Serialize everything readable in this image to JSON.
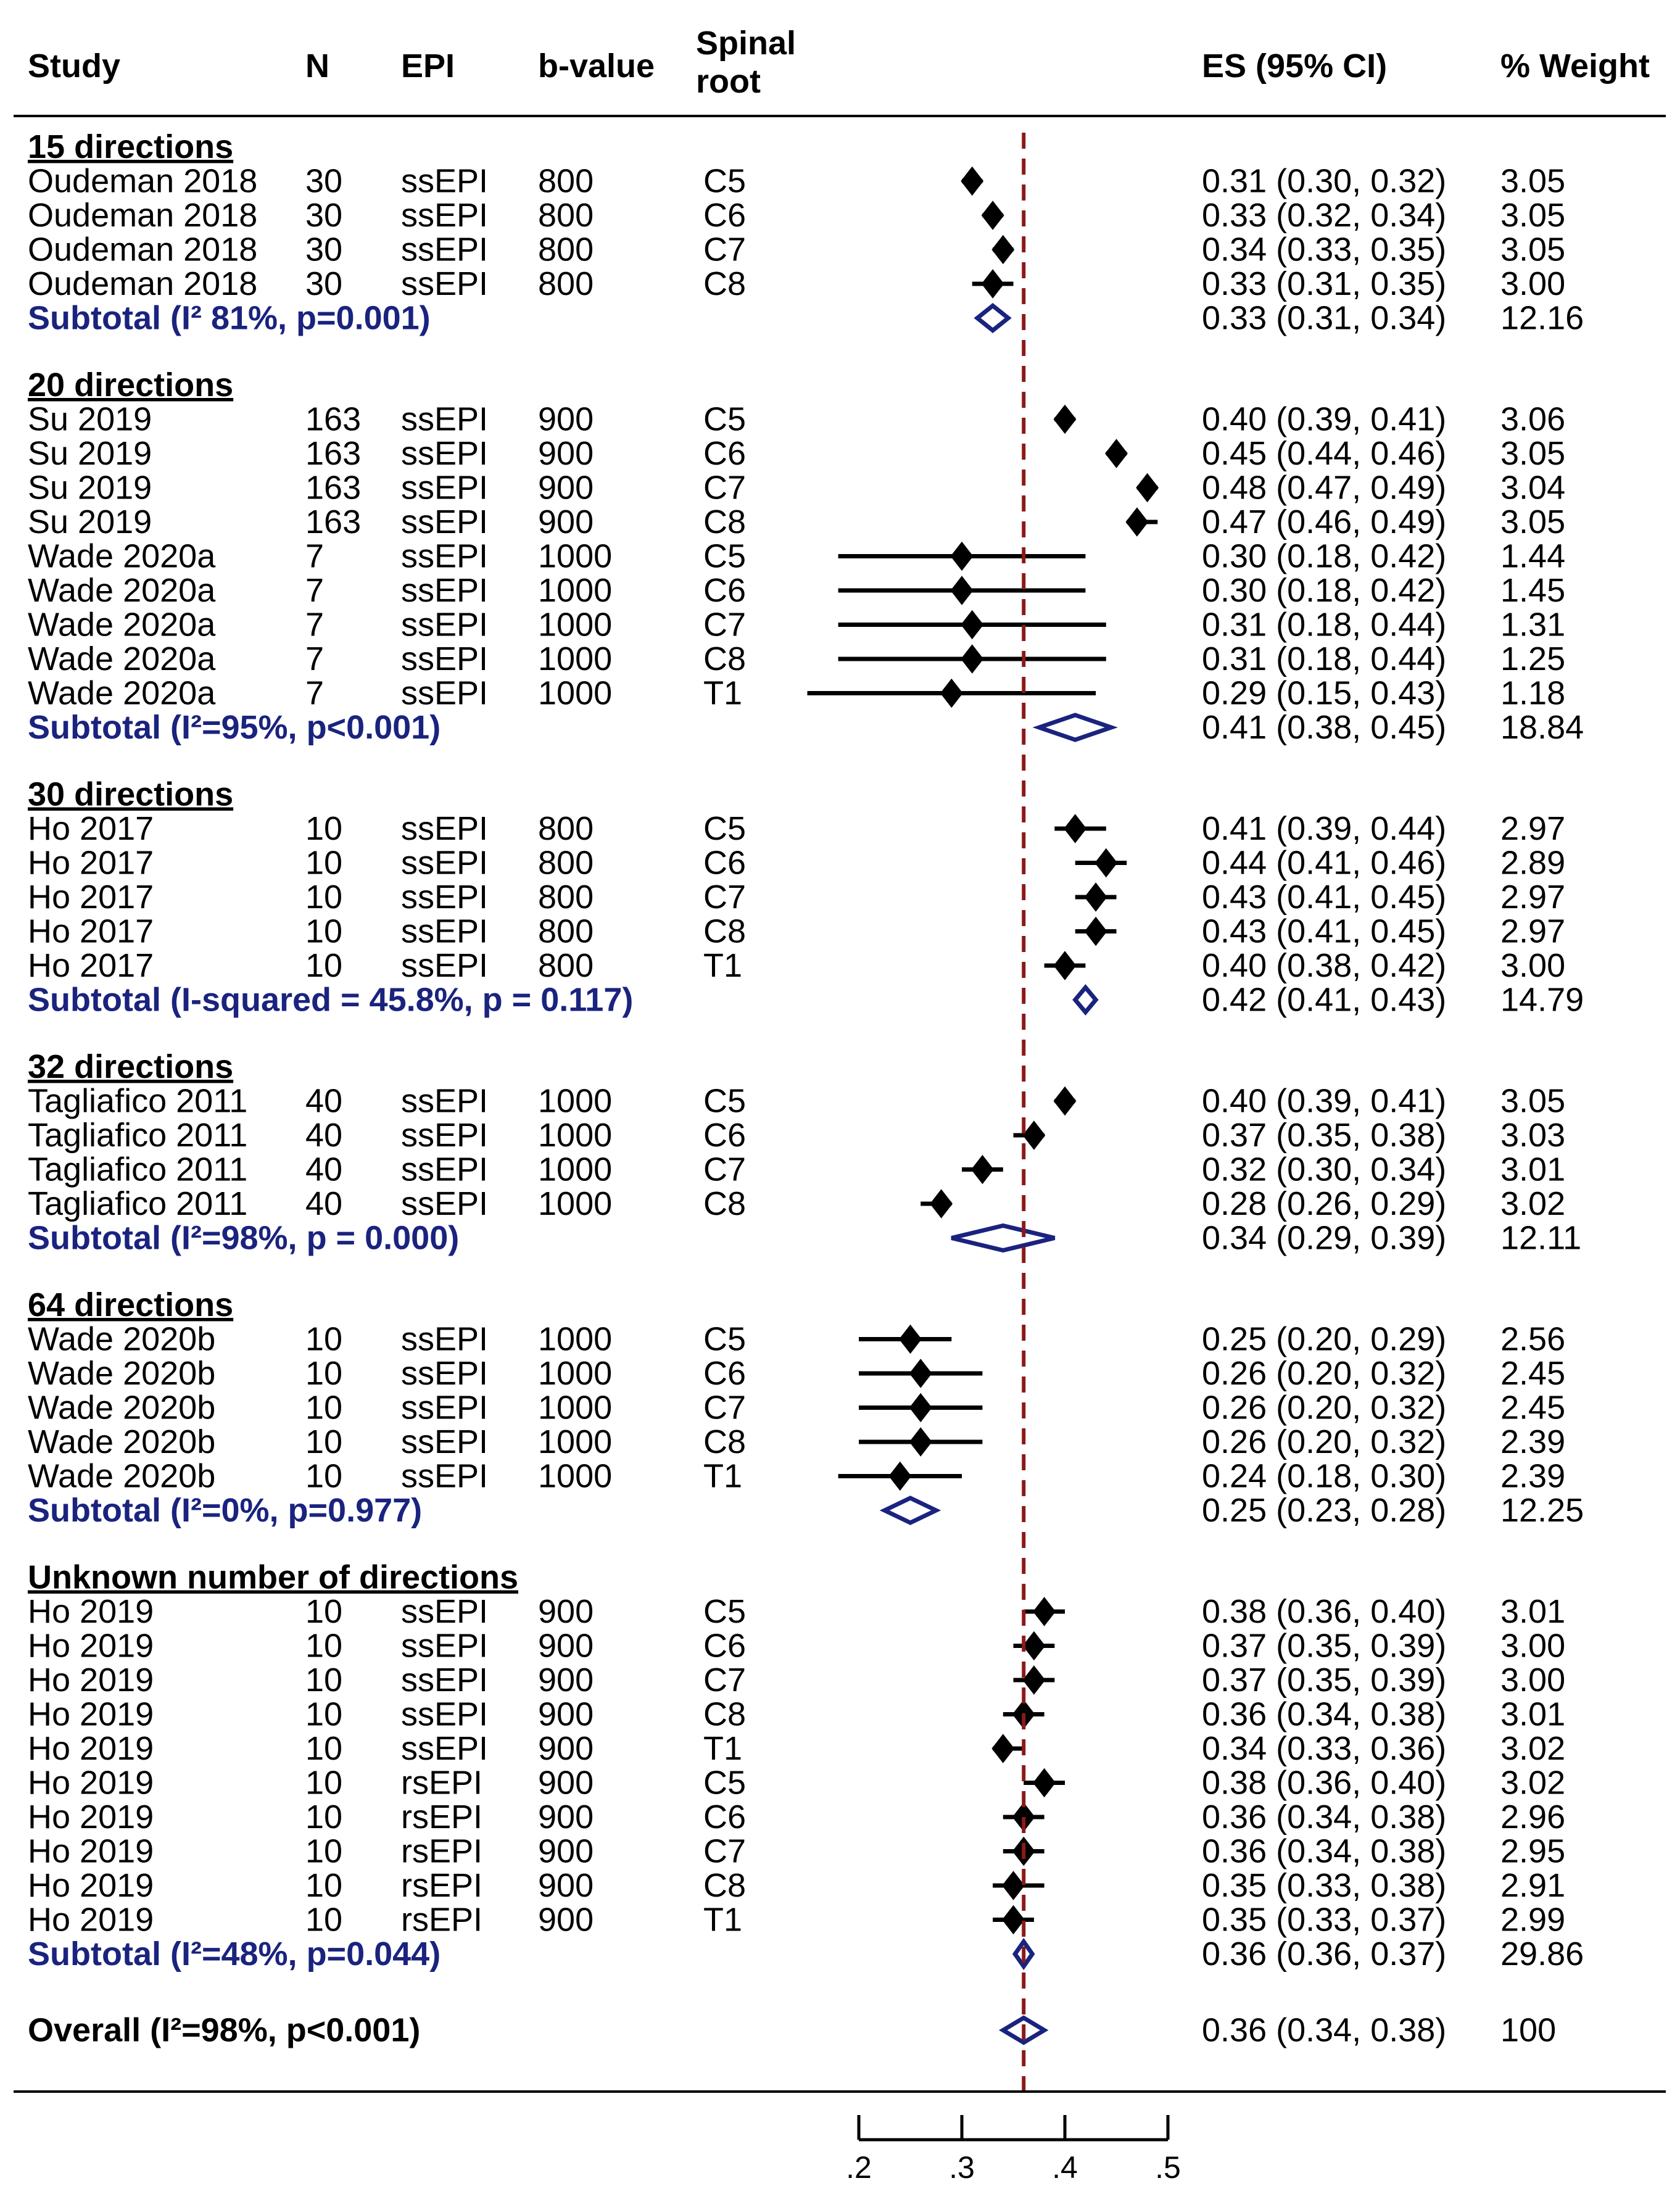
{
  "chart_data": {
    "type": "forest",
    "title": "",
    "headers": {
      "study": "Study",
      "n": "N",
      "epi": "EPI",
      "bvalue": "b-value",
      "root_line1": "Spinal",
      "root_line2": "root",
      "es": "ES (95% CI)",
      "weight": "% Weight"
    },
    "reference_line": 0.36,
    "xaxis": {
      "ticks": [
        0.2,
        0.3,
        0.4,
        0.5
      ],
      "tick_labels": [
        ".2",
        ".3",
        ".4",
        ".5"
      ],
      "range": [
        0.2,
        0.5
      ]
    },
    "colors": {
      "study_marker": "#000000",
      "pooled": "#1a237e",
      "reference_line": "#8b1a1a"
    },
    "groups": [
      {
        "label": "15 directions",
        "rows": [
          {
            "study": "Oudeman 2018",
            "n": "30",
            "epi": "ssEPI",
            "b": "800",
            "root": "C5",
            "es": 0.31,
            "lo": 0.3,
            "hi": 0.32,
            "ci": "0.31 (0.30, 0.32)",
            "w": "3.05"
          },
          {
            "study": "Oudeman 2018",
            "n": "30",
            "epi": "ssEPI",
            "b": "800",
            "root": "C6",
            "es": 0.33,
            "lo": 0.32,
            "hi": 0.34,
            "ci": "0.33 (0.32, 0.34)",
            "w": "3.05"
          },
          {
            "study": "Oudeman 2018",
            "n": "30",
            "epi": "ssEPI",
            "b": "800",
            "root": "C7",
            "es": 0.34,
            "lo": 0.33,
            "hi": 0.35,
            "ci": "0.34 (0.33, 0.35)",
            "w": "3.05"
          },
          {
            "study": "Oudeman 2018",
            "n": "30",
            "epi": "ssEPI",
            "b": "800",
            "root": "C8",
            "es": 0.33,
            "lo": 0.31,
            "hi": 0.35,
            "ci": "0.33 (0.31, 0.35)",
            "w": "3.00"
          }
        ],
        "subtotal": {
          "label": "Subtotal  (I² 81%, p=0.001)",
          "es": 0.33,
          "lo": 0.31,
          "hi": 0.34,
          "ci": "0.33 (0.31, 0.34)",
          "w": "12.16"
        }
      },
      {
        "label": "20 directions",
        "rows": [
          {
            "study": "Su 2019",
            "n": "163",
            "epi": "ssEPI",
            "b": "900",
            "root": "C5",
            "es": 0.4,
            "lo": 0.39,
            "hi": 0.41,
            "ci": "0.40 (0.39, 0.41)",
            "w": "3.06"
          },
          {
            "study": "Su 2019",
            "n": "163",
            "epi": "ssEPI",
            "b": "900",
            "root": "C6",
            "es": 0.45,
            "lo": 0.44,
            "hi": 0.46,
            "ci": "0.45 (0.44, 0.46)",
            "w": "3.05"
          },
          {
            "study": "Su 2019",
            "n": "163",
            "epi": "ssEPI",
            "b": "900",
            "root": "C7",
            "es": 0.48,
            "lo": 0.47,
            "hi": 0.49,
            "ci": "0.48 (0.47, 0.49)",
            "w": "3.04"
          },
          {
            "study": "Su 2019",
            "n": "163",
            "epi": "ssEPI",
            "b": "900",
            "root": "C8",
            "es": 0.47,
            "lo": 0.46,
            "hi": 0.49,
            "ci": "0.47 (0.46, 0.49)",
            "w": "3.05"
          },
          {
            "study": "Wade 2020a",
            "n": "7",
            "epi": "ssEPI",
            "b": "1000",
            "root": "C5",
            "es": 0.3,
            "lo": 0.18,
            "hi": 0.42,
            "ci": "0.30 (0.18, 0.42)",
            "w": "1.44"
          },
          {
            "study": "Wade 2020a",
            "n": "7",
            "epi": "ssEPI",
            "b": "1000",
            "root": "C6",
            "es": 0.3,
            "lo": 0.18,
            "hi": 0.42,
            "ci": "0.30 (0.18, 0.42)",
            "w": "1.45"
          },
          {
            "study": "Wade 2020a",
            "n": "7",
            "epi": "ssEPI",
            "b": "1000",
            "root": "C7",
            "es": 0.31,
            "lo": 0.18,
            "hi": 0.44,
            "ci": "0.31 (0.18, 0.44)",
            "w": "1.31"
          },
          {
            "study": "Wade 2020a",
            "n": "7",
            "epi": "ssEPI",
            "b": "1000",
            "root": "C8",
            "es": 0.31,
            "lo": 0.18,
            "hi": 0.44,
            "ci": "0.31 (0.18, 0.44)",
            "w": "1.25"
          },
          {
            "study": "Wade 2020a",
            "n": "7",
            "epi": "ssEPI",
            "b": "1000",
            "root": "T1",
            "es": 0.29,
            "lo": 0.15,
            "hi": 0.43,
            "ci": "0.29 (0.15, 0.43)",
            "w": "1.18"
          }
        ],
        "subtotal": {
          "label": "Subtotal  (I²=95%, p<0.001)",
          "es": 0.41,
          "lo": 0.38,
          "hi": 0.45,
          "ci": "0.41 (0.38, 0.45)",
          "w": "18.84"
        }
      },
      {
        "label": "30 directions",
        "rows": [
          {
            "study": "Ho 2017",
            "n": "10",
            "epi": "ssEPI",
            "b": "800",
            "root": "C5",
            "es": 0.41,
            "lo": 0.39,
            "hi": 0.44,
            "ci": "0.41 (0.39, 0.44)",
            "w": "2.97"
          },
          {
            "study": "Ho 2017",
            "n": "10",
            "epi": "ssEPI",
            "b": "800",
            "root": "C6",
            "es": 0.44,
            "lo": 0.41,
            "hi": 0.46,
            "ci": "0.44 (0.41, 0.46)",
            "w": "2.89"
          },
          {
            "study": "Ho 2017",
            "n": "10",
            "epi": "ssEPI",
            "b": "800",
            "root": "C7",
            "es": 0.43,
            "lo": 0.41,
            "hi": 0.45,
            "ci": "0.43 (0.41, 0.45)",
            "w": "2.97"
          },
          {
            "study": "Ho 2017",
            "n": "10",
            "epi": "ssEPI",
            "b": "800",
            "root": "C8",
            "es": 0.43,
            "lo": 0.41,
            "hi": 0.45,
            "ci": "0.43 (0.41, 0.45)",
            "w": "2.97"
          },
          {
            "study": "Ho 2017",
            "n": "10",
            "epi": "ssEPI",
            "b": "800",
            "root": "T1",
            "es": 0.4,
            "lo": 0.38,
            "hi": 0.42,
            "ci": "0.40 (0.38, 0.42)",
            "w": "3.00"
          }
        ],
        "subtotal": {
          "label": "Subtotal  (I-squared = 45.8%, p = 0.117)",
          "es": 0.42,
          "lo": 0.41,
          "hi": 0.43,
          "ci": "0.42 (0.41, 0.43)",
          "w": "14.79"
        }
      },
      {
        "label": "32 directions",
        "rows": [
          {
            "study": "Tagliafico 2011",
            "n": "40",
            "epi": "ssEPI",
            "b": "1000",
            "root": "C5",
            "es": 0.4,
            "lo": 0.39,
            "hi": 0.41,
            "ci": "0.40 (0.39, 0.41)",
            "w": "3.05"
          },
          {
            "study": "Tagliafico 2011",
            "n": "40",
            "epi": "ssEPI",
            "b": "1000",
            "root": "C6",
            "es": 0.37,
            "lo": 0.35,
            "hi": 0.38,
            "ci": "0.37 (0.35, 0.38)",
            "w": "3.03"
          },
          {
            "study": "Tagliafico 2011",
            "n": "40",
            "epi": "ssEPI",
            "b": "1000",
            "root": "C7",
            "es": 0.32,
            "lo": 0.3,
            "hi": 0.34,
            "ci": "0.32 (0.30, 0.34)",
            "w": "3.01"
          },
          {
            "study": "Tagliafico 2011",
            "n": "40",
            "epi": "ssEPI",
            "b": "1000",
            "root": "C8",
            "es": 0.28,
            "lo": 0.26,
            "hi": 0.29,
            "ci": "0.28 (0.26, 0.29)",
            "w": "3.02"
          }
        ],
        "subtotal": {
          "label": "Subtotal  (I²=98%, p = 0.000)",
          "es": 0.34,
          "lo": 0.29,
          "hi": 0.39,
          "ci": "0.34 (0.29, 0.39)",
          "w": "12.11"
        }
      },
      {
        "label": "64 directions",
        "rows": [
          {
            "study": "Wade 2020b",
            "n": "10",
            "epi": "ssEPI",
            "b": "1000",
            "root": "C5",
            "es": 0.25,
            "lo": 0.2,
            "hi": 0.29,
            "ci": "0.25 (0.20, 0.29)",
            "w": "2.56"
          },
          {
            "study": "Wade 2020b",
            "n": "10",
            "epi": "ssEPI",
            "b": "1000",
            "root": "C6",
            "es": 0.26,
            "lo": 0.2,
            "hi": 0.32,
            "ci": "0.26 (0.20, 0.32)",
            "w": "2.45"
          },
          {
            "study": "Wade 2020b",
            "n": "10",
            "epi": "ssEPI",
            "b": "1000",
            "root": "C7",
            "es": 0.26,
            "lo": 0.2,
            "hi": 0.32,
            "ci": "0.26 (0.20, 0.32)",
            "w": "2.45"
          },
          {
            "study": "Wade 2020b",
            "n": "10",
            "epi": "ssEPI",
            "b": "1000",
            "root": "C8",
            "es": 0.26,
            "lo": 0.2,
            "hi": 0.32,
            "ci": "0.26 (0.20, 0.32)",
            "w": "2.39"
          },
          {
            "study": "Wade 2020b",
            "n": "10",
            "epi": "ssEPI",
            "b": "1000",
            "root": "T1",
            "es": 0.24,
            "lo": 0.18,
            "hi": 0.3,
            "ci": "0.24 (0.18, 0.30)",
            "w": "2.39"
          }
        ],
        "subtotal": {
          "label": "Subtotal  (I²=0%, p=0.977)",
          "es": 0.25,
          "lo": 0.23,
          "hi": 0.28,
          "ci": "0.25 (0.23, 0.28)",
          "w": "12.25"
        }
      },
      {
        "label": "Unknown number of directions",
        "rows": [
          {
            "study": "Ho 2019",
            "n": "10",
            "epi": "ssEPI",
            "b": "900",
            "root": "C5",
            "es": 0.38,
            "lo": 0.36,
            "hi": 0.4,
            "ci": "0.38 (0.36, 0.40)",
            "w": "3.01"
          },
          {
            "study": "Ho 2019",
            "n": "10",
            "epi": "ssEPI",
            "b": "900",
            "root": "C6",
            "es": 0.37,
            "lo": 0.35,
            "hi": 0.39,
            "ci": "0.37 (0.35, 0.39)",
            "w": "3.00"
          },
          {
            "study": "Ho 2019",
            "n": "10",
            "epi": "ssEPI",
            "b": "900",
            "root": "C7",
            "es": 0.37,
            "lo": 0.35,
            "hi": 0.39,
            "ci": "0.37 (0.35, 0.39)",
            "w": "3.00"
          },
          {
            "study": "Ho 2019",
            "n": "10",
            "epi": "ssEPI",
            "b": "900",
            "root": "C8",
            "es": 0.36,
            "lo": 0.34,
            "hi": 0.38,
            "ci": "0.36 (0.34, 0.38)",
            "w": "3.01"
          },
          {
            "study": "Ho 2019",
            "n": "10",
            "epi": "ssEPI",
            "b": "900",
            "root": "T1",
            "es": 0.34,
            "lo": 0.33,
            "hi": 0.36,
            "ci": "0.34 (0.33, 0.36)",
            "w": "3.02"
          },
          {
            "study": "Ho 2019",
            "n": "10",
            "epi": "rsEPI",
            "b": "900",
            "root": "C5",
            "es": 0.38,
            "lo": 0.36,
            "hi": 0.4,
            "ci": "0.38 (0.36, 0.40)",
            "w": "3.02"
          },
          {
            "study": "Ho 2019",
            "n": "10",
            "epi": "rsEPI",
            "b": "900",
            "root": "C6",
            "es": 0.36,
            "lo": 0.34,
            "hi": 0.38,
            "ci": "0.36 (0.34, 0.38)",
            "w": "2.96"
          },
          {
            "study": "Ho 2019",
            "n": "10",
            "epi": "rsEPI",
            "b": "900",
            "root": "C7",
            "es": 0.36,
            "lo": 0.34,
            "hi": 0.38,
            "ci": "0.36 (0.34, 0.38)",
            "w": "2.95"
          },
          {
            "study": "Ho 2019",
            "n": "10",
            "epi": "rsEPI",
            "b": "900",
            "root": "C8",
            "es": 0.35,
            "lo": 0.33,
            "hi": 0.38,
            "ci": "0.35 (0.33, 0.38)",
            "w": "2.91"
          },
          {
            "study": "Ho 2019",
            "n": "10",
            "epi": "rsEPI",
            "b": "900",
            "root": "T1",
            "es": 0.35,
            "lo": 0.33,
            "hi": 0.37,
            "ci": "0.35 (0.33, 0.37)",
            "w": "2.99"
          }
        ],
        "subtotal": {
          "label": "Subtotal  (I²=48%, p=0.044)",
          "es": 0.36,
          "lo": 0.36,
          "hi": 0.37,
          "ci": "0.36 (0.36, 0.37)",
          "w": "29.86"
        }
      }
    ],
    "overall": {
      "label": "Overall  (I²=98%, p<0.001)",
      "es": 0.36,
      "lo": 0.34,
      "hi": 0.38,
      "ci": "0.36 (0.34, 0.38)",
      "w": "100"
    }
  }
}
